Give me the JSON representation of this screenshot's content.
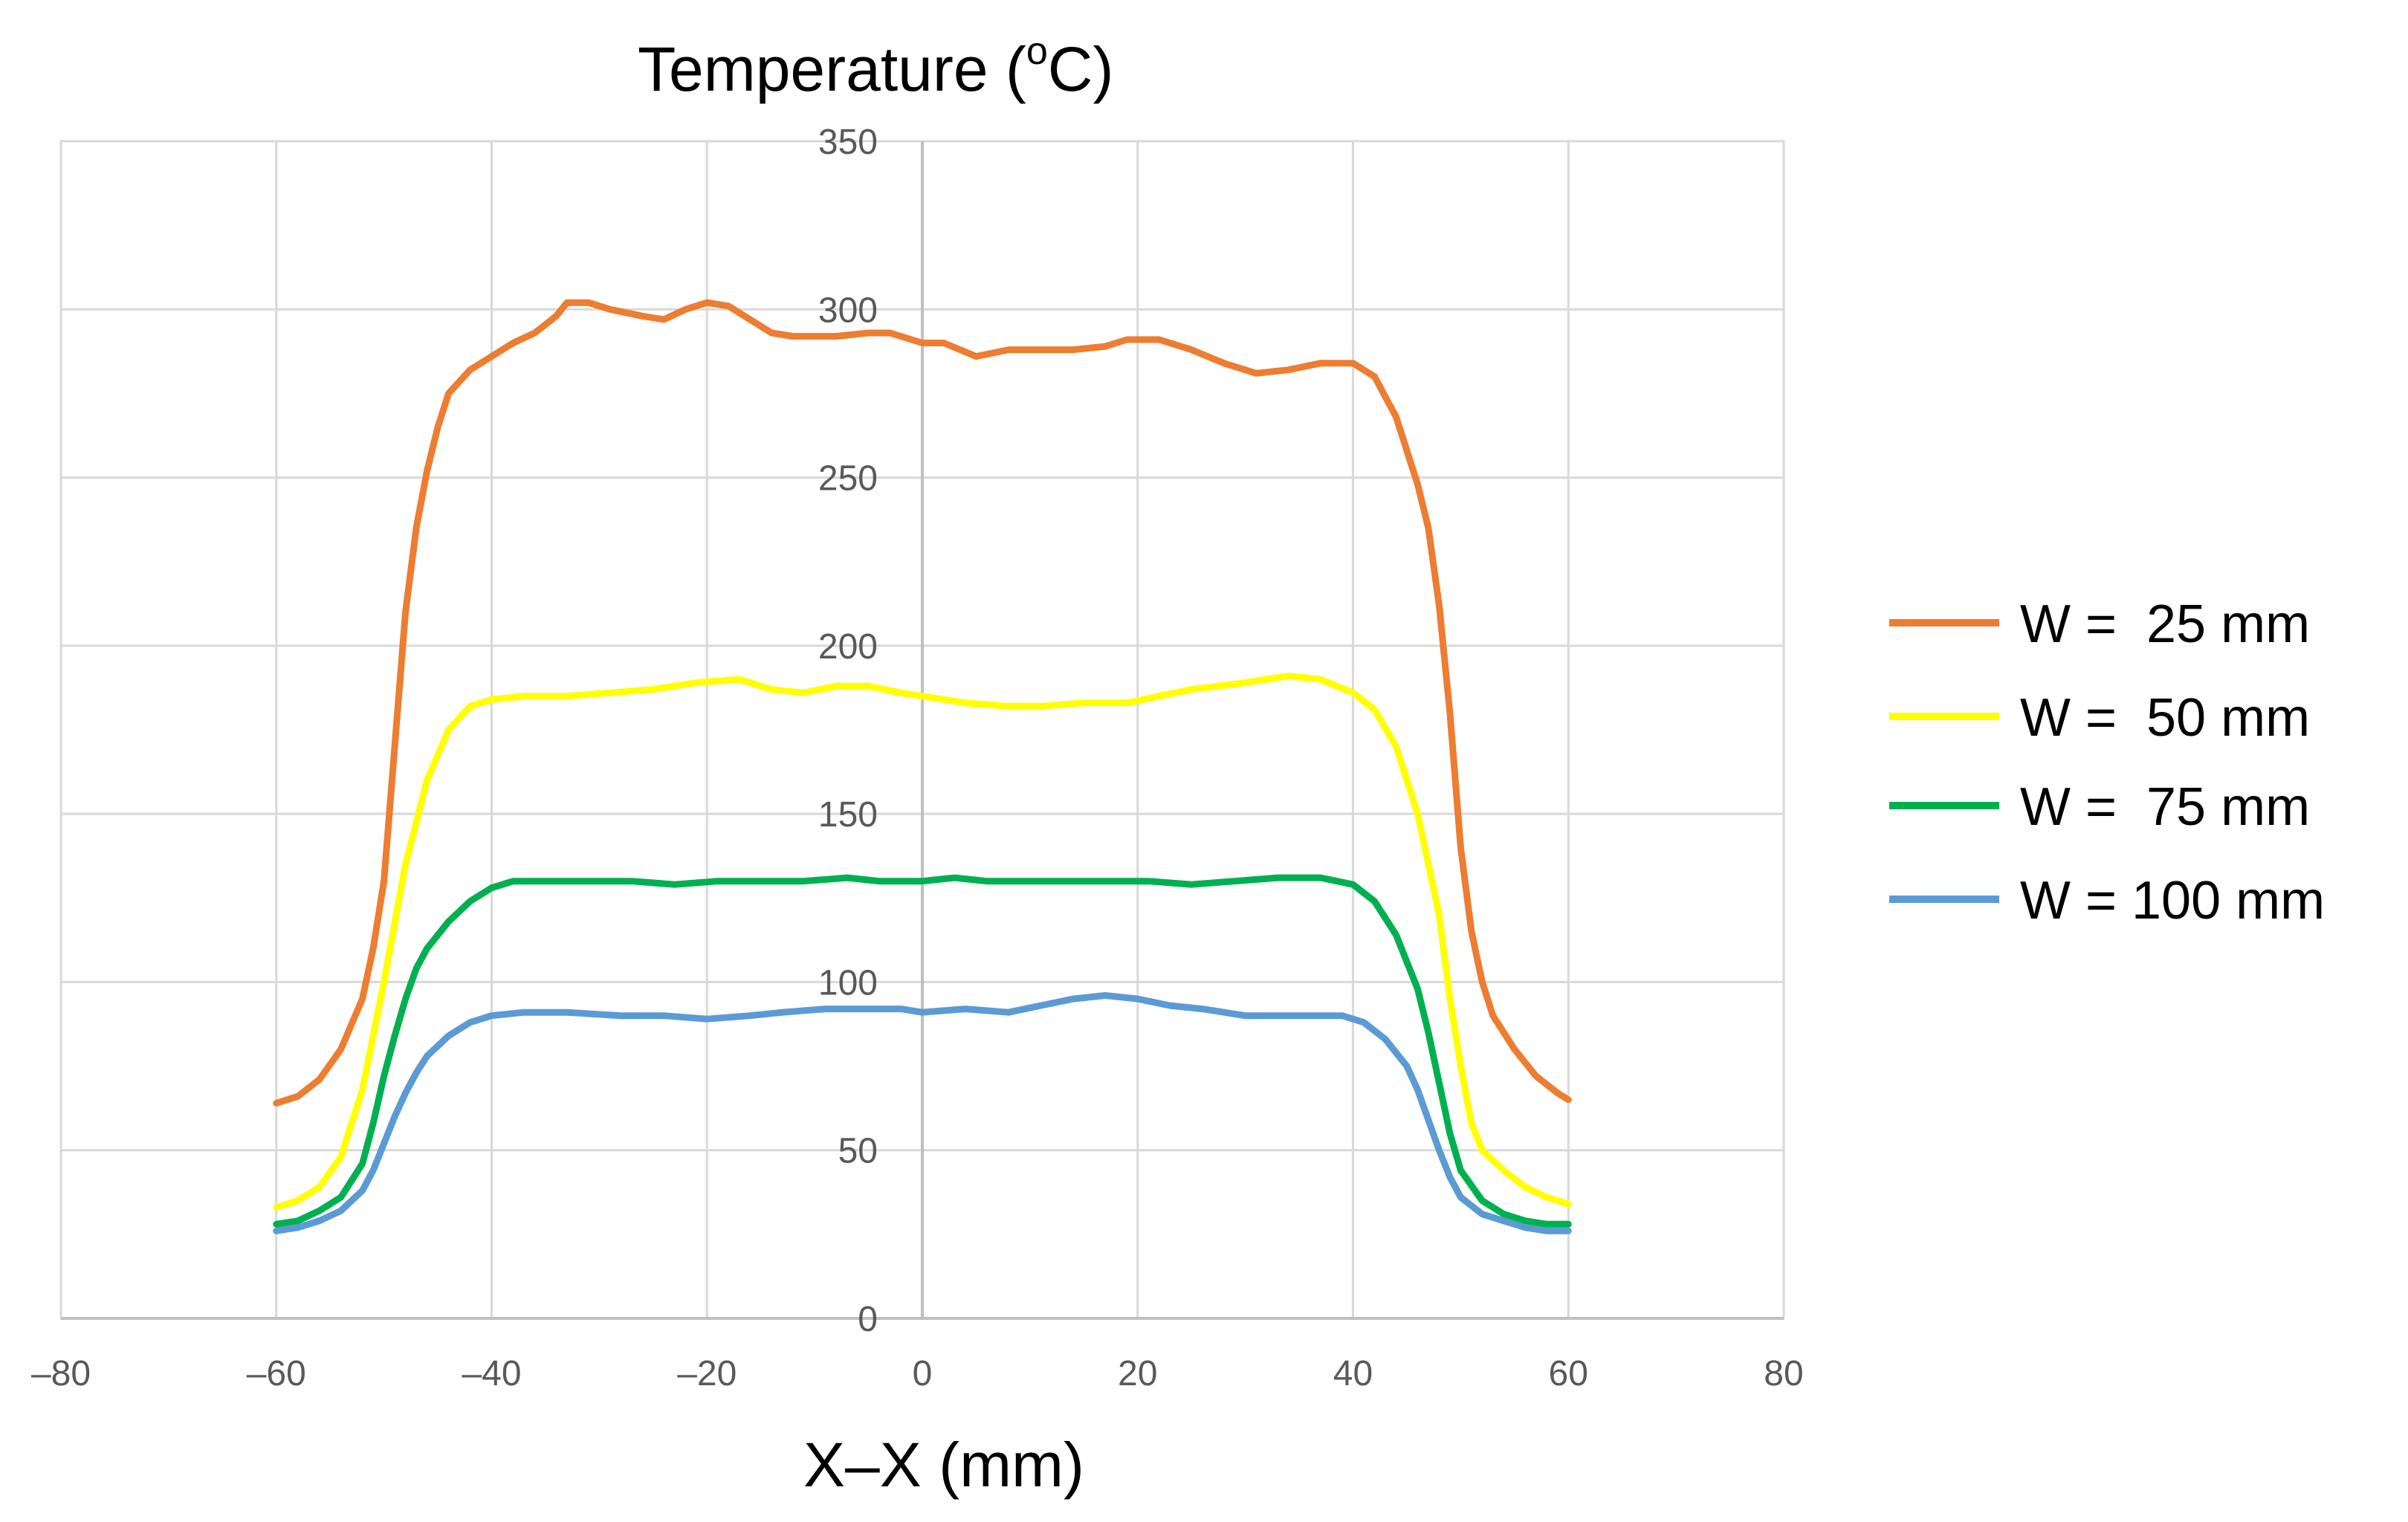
{
  "chart_data": {
    "type": "line",
    "title": "",
    "ylabel_main": "Temperature (",
    "ylabel_sup": "o",
    "ylabel_tail": "C)",
    "xlabel": "X–X (mm)",
    "xlim": [
      -80,
      80
    ],
    "ylim": [
      0,
      350
    ],
    "x_ticks": [
      -80,
      -60,
      -40,
      -20,
      0,
      20,
      40,
      60,
      80
    ],
    "x_tick_labels": [
      "–80",
      "–60",
      "–40",
      "–20",
      "0",
      "20",
      "40",
      "60",
      "80"
    ],
    "y_ticks": [
      0,
      50,
      100,
      150,
      200,
      250,
      300,
      350
    ],
    "y_tick_labels": [
      "0",
      "50",
      "100",
      "150",
      "200",
      "250",
      "300",
      "350"
    ],
    "grid": true,
    "legend_position": "right",
    "series": [
      {
        "name": "W =  25 mm",
        "color": "#ED7D31",
        "points": [
          [
            -60,
            64
          ],
          [
            -58,
            66
          ],
          [
            -56,
            71
          ],
          [
            -54,
            80
          ],
          [
            -52,
            95
          ],
          [
            -51,
            110
          ],
          [
            -50,
            130
          ],
          [
            -49,
            170
          ],
          [
            -48,
            210
          ],
          [
            -47,
            235
          ],
          [
            -46,
            252
          ],
          [
            -45,
            265
          ],
          [
            -44,
            275
          ],
          [
            -42,
            282
          ],
          [
            -40,
            286
          ],
          [
            -38,
            290
          ],
          [
            -36,
            293
          ],
          [
            -34,
            298
          ],
          [
            -33,
            302
          ],
          [
            -31,
            302
          ],
          [
            -29,
            300
          ],
          [
            -26,
            298
          ],
          [
            -24,
            297
          ],
          [
            -22,
            300
          ],
          [
            -20,
            302
          ],
          [
            -18,
            301
          ],
          [
            -16,
            297
          ],
          [
            -14,
            293
          ],
          [
            -12,
            292
          ],
          [
            -10,
            292
          ],
          [
            -8,
            292
          ],
          [
            -5,
            293
          ],
          [
            -3,
            293
          ],
          [
            -1,
            291
          ],
          [
            0,
            290
          ],
          [
            2,
            290
          ],
          [
            5,
            286
          ],
          [
            8,
            288
          ],
          [
            11,
            288
          ],
          [
            14,
            288
          ],
          [
            17,
            289
          ],
          [
            19,
            291
          ],
          [
            22,
            291
          ],
          [
            25,
            288
          ],
          [
            28,
            284
          ],
          [
            31,
            281
          ],
          [
            34,
            282
          ],
          [
            37,
            284
          ],
          [
            40,
            284
          ],
          [
            42,
            280
          ],
          [
            44,
            268
          ],
          [
            46,
            248
          ],
          [
            47,
            235
          ],
          [
            48,
            212
          ],
          [
            49,
            180
          ],
          [
            50,
            140
          ],
          [
            51,
            115
          ],
          [
            52,
            100
          ],
          [
            53,
            90
          ],
          [
            55,
            80
          ],
          [
            57,
            72
          ],
          [
            59,
            67
          ],
          [
            60,
            65
          ]
        ]
      },
      {
        "name": "W =  50 mm",
        "color": "#FFFF00",
        "points": [
          [
            -60,
            33
          ],
          [
            -58,
            35
          ],
          [
            -56,
            39
          ],
          [
            -54,
            48
          ],
          [
            -52,
            68
          ],
          [
            -50,
            100
          ],
          [
            -48,
            135
          ],
          [
            -46,
            160
          ],
          [
            -44,
            175
          ],
          [
            -42,
            182
          ],
          [
            -40,
            184
          ],
          [
            -37,
            185
          ],
          [
            -33,
            185
          ],
          [
            -29,
            186
          ],
          [
            -25,
            187
          ],
          [
            -21,
            189
          ],
          [
            -17,
            190
          ],
          [
            -14,
            187
          ],
          [
            -11,
            186
          ],
          [
            -8,
            188
          ],
          [
            -5,
            188
          ],
          [
            -2,
            186
          ],
          [
            0,
            185
          ],
          [
            4,
            183
          ],
          [
            8,
            182
          ],
          [
            11,
            182
          ],
          [
            15,
            183
          ],
          [
            19,
            183
          ],
          [
            22,
            185
          ],
          [
            25,
            187
          ],
          [
            30,
            189
          ],
          [
            34,
            191
          ],
          [
            37,
            190
          ],
          [
            40,
            186
          ],
          [
            42,
            181
          ],
          [
            44,
            170
          ],
          [
            46,
            150
          ],
          [
            48,
            120
          ],
          [
            49,
            95
          ],
          [
            50,
            75
          ],
          [
            51,
            58
          ],
          [
            52,
            50
          ],
          [
            54,
            44
          ],
          [
            56,
            39
          ],
          [
            58,
            36
          ],
          [
            60,
            34
          ]
        ]
      },
      {
        "name": "W =  75 mm",
        "color": "#00B050",
        "points": [
          [
            -60,
            28
          ],
          [
            -58,
            29
          ],
          [
            -56,
            32
          ],
          [
            -54,
            36
          ],
          [
            -52,
            46
          ],
          [
            -51,
            58
          ],
          [
            -50,
            72
          ],
          [
            -49,
            84
          ],
          [
            -48,
            95
          ],
          [
            -47,
            104
          ],
          [
            -46,
            110
          ],
          [
            -44,
            118
          ],
          [
            -42,
            124
          ],
          [
            -40,
            128
          ],
          [
            -38,
            130
          ],
          [
            -35,
            130
          ],
          [
            -31,
            130
          ],
          [
            -27,
            130
          ],
          [
            -23,
            129
          ],
          [
            -19,
            130
          ],
          [
            -15,
            130
          ],
          [
            -11,
            130
          ],
          [
            -7,
            131
          ],
          [
            -4,
            130
          ],
          [
            0,
            130
          ],
          [
            3,
            131
          ],
          [
            6,
            130
          ],
          [
            9,
            130
          ],
          [
            13,
            130
          ],
          [
            17,
            130
          ],
          [
            21,
            130
          ],
          [
            25,
            129
          ],
          [
            29,
            130
          ],
          [
            33,
            131
          ],
          [
            37,
            131
          ],
          [
            40,
            129
          ],
          [
            42,
            124
          ],
          [
            44,
            114
          ],
          [
            46,
            98
          ],
          [
            47,
            85
          ],
          [
            48,
            70
          ],
          [
            49,
            55
          ],
          [
            50,
            44
          ],
          [
            52,
            35
          ],
          [
            54,
            31
          ],
          [
            56,
            29
          ],
          [
            58,
            28
          ],
          [
            60,
            28
          ]
        ]
      },
      {
        "name": "W = 100 mm",
        "color": "#5B9BD5",
        "points": [
          [
            -60,
            26
          ],
          [
            -58,
            27
          ],
          [
            -56,
            29
          ],
          [
            -54,
            32
          ],
          [
            -52,
            38
          ],
          [
            -51,
            44
          ],
          [
            -50,
            52
          ],
          [
            -49,
            60
          ],
          [
            -48,
            67
          ],
          [
            -47,
            73
          ],
          [
            -46,
            78
          ],
          [
            -44,
            84
          ],
          [
            -42,
            88
          ],
          [
            -40,
            90
          ],
          [
            -37,
            91
          ],
          [
            -33,
            91
          ],
          [
            -28,
            90
          ],
          [
            -24,
            90
          ],
          [
            -20,
            89
          ],
          [
            -16,
            90
          ],
          [
            -13,
            91
          ],
          [
            -9,
            92
          ],
          [
            -5,
            92
          ],
          [
            -2,
            92
          ],
          [
            0,
            91
          ],
          [
            4,
            92
          ],
          [
            8,
            91
          ],
          [
            11,
            93
          ],
          [
            14,
            95
          ],
          [
            17,
            96
          ],
          [
            20,
            95
          ],
          [
            23,
            93
          ],
          [
            26,
            92
          ],
          [
            30,
            90
          ],
          [
            34,
            90
          ],
          [
            37,
            90
          ],
          [
            39,
            90
          ],
          [
            41,
            88
          ],
          [
            43,
            83
          ],
          [
            45,
            75
          ],
          [
            46,
            68
          ],
          [
            47,
            59
          ],
          [
            48,
            50
          ],
          [
            49,
            42
          ],
          [
            50,
            36
          ],
          [
            52,
            31
          ],
          [
            54,
            29
          ],
          [
            56,
            27
          ],
          [
            58,
            26
          ],
          [
            60,
            26
          ]
        ]
      }
    ]
  }
}
